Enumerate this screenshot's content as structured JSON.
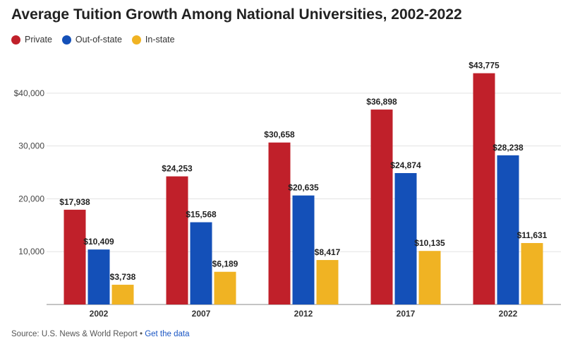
{
  "title": "Average Tuition Growth Among National Universities, 2002-2022",
  "footer": {
    "source": "Source: U.S. News & World Report",
    "separator": "•",
    "link_label": "Get the data"
  },
  "chart_data": {
    "type": "bar",
    "categories": [
      "2002",
      "2007",
      "2012",
      "2017",
      "2022"
    ],
    "series": [
      {
        "name": "Private",
        "color": "#c0202a",
        "values": [
          17938,
          24253,
          30658,
          36898,
          43775
        ],
        "labels": [
          "$17,938",
          "$24,253",
          "$30,658",
          "$36,898",
          "$43,775"
        ]
      },
      {
        "name": "Out-of-state",
        "color": "#1450b8",
        "values": [
          10409,
          15568,
          20635,
          24874,
          28238
        ],
        "labels": [
          "$10,409",
          "$15,568",
          "$20,635",
          "$24,874",
          "$28,238"
        ]
      },
      {
        "name": "In-state",
        "color": "#f0b323",
        "values": [
          3738,
          6189,
          8417,
          10135,
          11631
        ],
        "labels": [
          "$3,738",
          "$6,189",
          "$8,417",
          "$10,135",
          "$11,631"
        ]
      }
    ],
    "yticks": [
      10000,
      20000,
      30000,
      40000
    ],
    "ytick_labels": [
      "10,000",
      "20,000",
      "30,000",
      "$40,000"
    ],
    "ylim": [
      0,
      46000
    ],
    "grid": true,
    "legend_position": "top-left"
  }
}
